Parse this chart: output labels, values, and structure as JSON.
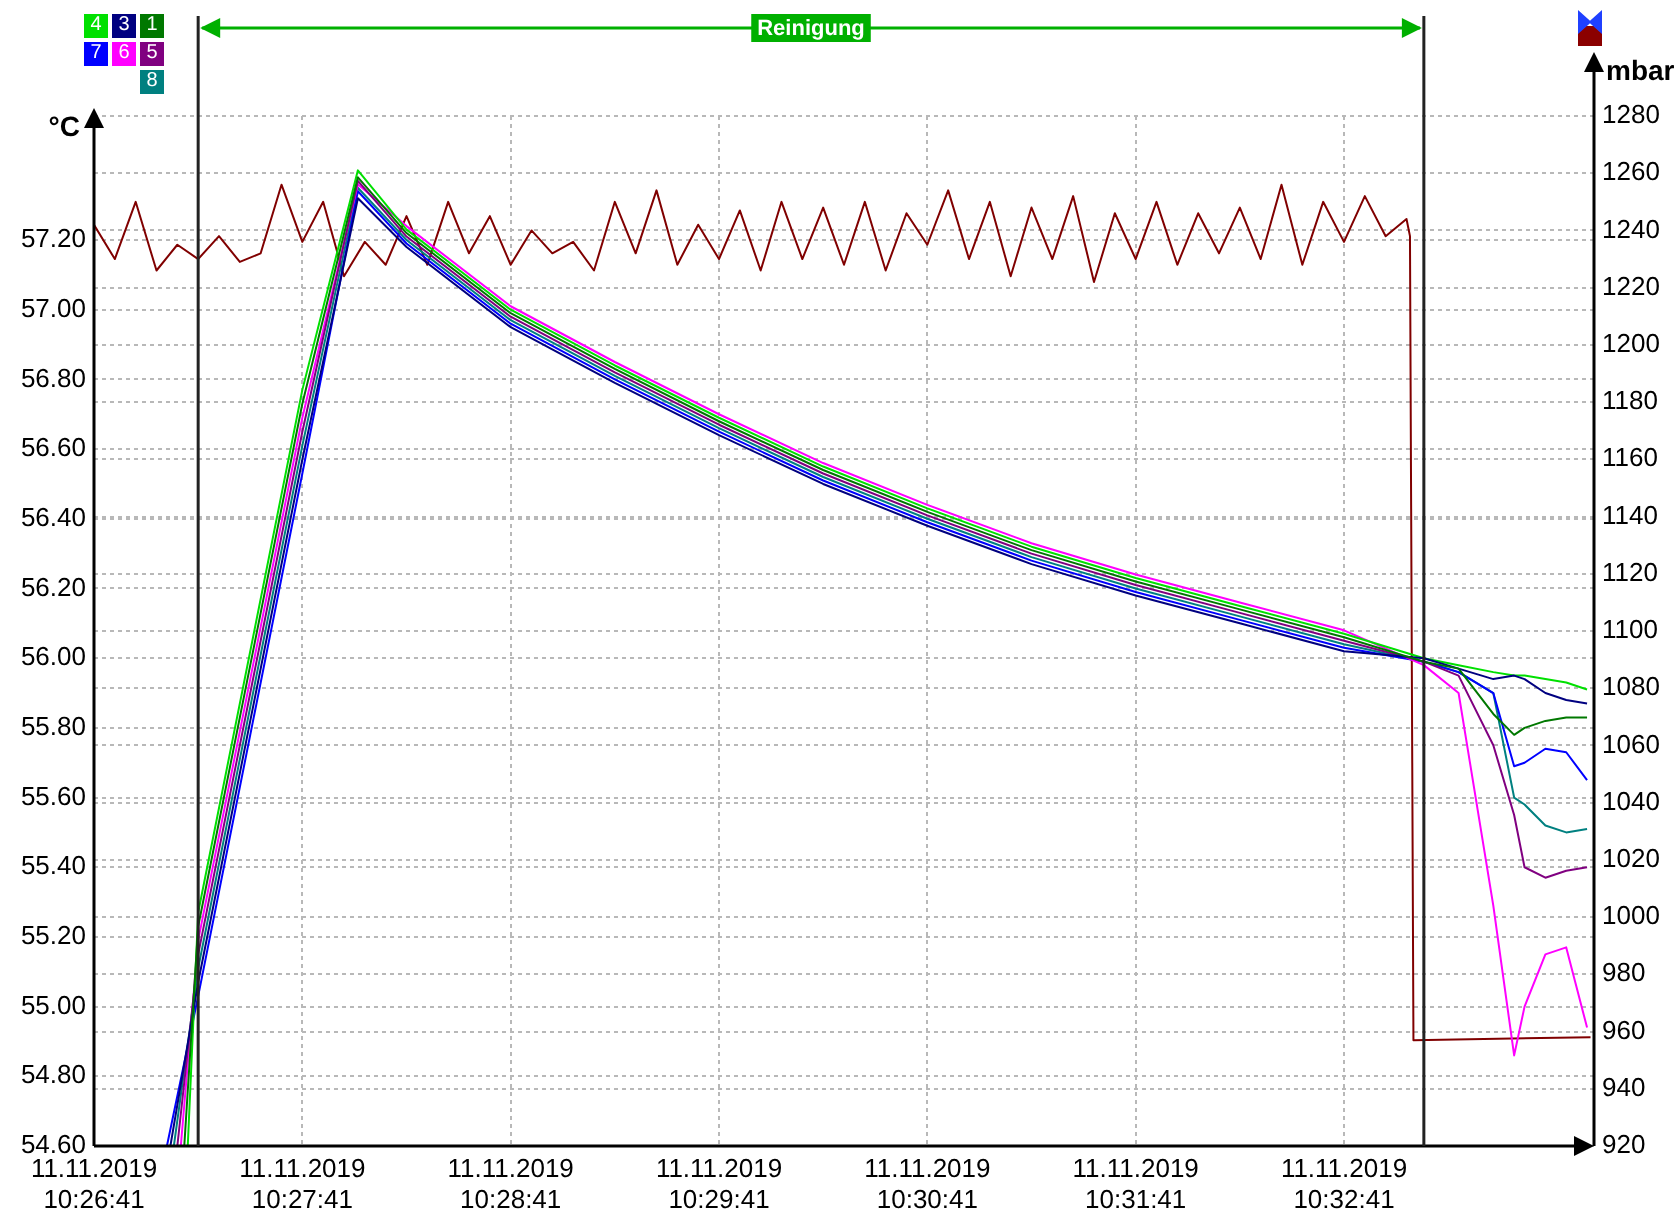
{
  "chart_data": {
    "type": "line",
    "ylabel": "°C",
    "y2label": "mbar",
    "series": [
      {
        "name": "1",
        "color": "#007800",
        "x": [
          "2019-11-11T10:27:07",
          "2019-11-11T10:27:11",
          "2019-11-11T10:27:26",
          "2019-11-11T10:27:41",
          "2019-11-11T10:27:57",
          "2019-11-11T10:28:11",
          "2019-11-11T10:28:41",
          "2019-11-11T10:29:11",
          "2019-11-11T10:29:41",
          "2019-11-11T10:30:11",
          "2019-11-11T10:30:41",
          "2019-11-11T10:31:11",
          "2019-11-11T10:31:41",
          "2019-11-11T10:32:11",
          "2019-11-11T10:32:41",
          "2019-11-11T10:33:04",
          "2019-11-11T10:33:14",
          "2019-11-11T10:33:24",
          "2019-11-11T10:33:30",
          "2019-11-11T10:33:33",
          "2019-11-11T10:33:39",
          "2019-11-11T10:33:45",
          "2019-11-11T10:33:51"
        ],
        "values": [
          54.6,
          55.23,
          55.98,
          56.73,
          57.38,
          57.22,
          56.99,
          56.83,
          56.68,
          56.54,
          56.42,
          56.31,
          56.22,
          56.14,
          56.06,
          55.99,
          55.97,
          55.84,
          55.78,
          55.8,
          55.82,
          55.83,
          55.83
        ]
      },
      {
        "name": "3",
        "color": "#000080",
        "x": [
          "2019-11-11T10:27:03",
          "2019-11-11T10:27:11",
          "2019-11-11T10:27:26",
          "2019-11-11T10:27:41",
          "2019-11-11T10:27:57",
          "2019-11-11T10:28:11",
          "2019-11-11T10:28:41",
          "2019-11-11T10:29:11",
          "2019-11-11T10:29:41",
          "2019-11-11T10:30:11",
          "2019-11-11T10:30:41",
          "2019-11-11T10:31:11",
          "2019-11-11T10:31:41",
          "2019-11-11T10:32:11",
          "2019-11-11T10:32:41",
          "2019-11-11T10:33:04",
          "2019-11-11T10:33:14",
          "2019-11-11T10:33:24",
          "2019-11-11T10:33:30",
          "2019-11-11T10:33:33",
          "2019-11-11T10:33:39",
          "2019-11-11T10:33:45",
          "2019-11-11T10:33:51"
        ],
        "values": [
          54.6,
          55.07,
          55.82,
          56.57,
          57.32,
          57.18,
          56.95,
          56.79,
          56.64,
          56.5,
          56.38,
          56.27,
          56.18,
          56.1,
          56.02,
          56.0,
          55.97,
          55.94,
          55.95,
          55.94,
          55.9,
          55.88,
          55.87
        ]
      },
      {
        "name": "4",
        "color": "#00e000",
        "x": [
          "2019-11-11T10:27:08",
          "2019-11-11T10:27:11",
          "2019-11-11T10:27:26",
          "2019-11-11T10:27:41",
          "2019-11-11T10:27:57",
          "2019-11-11T10:28:11",
          "2019-11-11T10:28:41",
          "2019-11-11T10:29:11",
          "2019-11-11T10:29:41",
          "2019-11-11T10:30:11",
          "2019-11-11T10:30:41",
          "2019-11-11T10:31:11",
          "2019-11-11T10:31:41",
          "2019-11-11T10:32:11",
          "2019-11-11T10:32:41",
          "2019-11-11T10:33:04",
          "2019-11-11T10:33:14",
          "2019-11-11T10:33:24",
          "2019-11-11T10:33:30",
          "2019-11-11T10:33:33",
          "2019-11-11T10:33:39",
          "2019-11-11T10:33:45",
          "2019-11-11T10:33:51"
        ],
        "values": [
          54.6,
          55.27,
          56.02,
          56.77,
          57.4,
          57.23,
          57.0,
          56.84,
          56.69,
          56.55,
          56.43,
          56.32,
          56.23,
          56.15,
          56.07,
          56.0,
          55.98,
          55.96,
          55.95,
          55.95,
          55.94,
          55.93,
          55.91
        ]
      },
      {
        "name": "5",
        "color": "#800080",
        "x": [
          "2019-11-11T10:27:05",
          "2019-11-11T10:27:11",
          "2019-11-11T10:27:26",
          "2019-11-11T10:27:41",
          "2019-11-11T10:27:57",
          "2019-11-11T10:28:11",
          "2019-11-11T10:28:41",
          "2019-11-11T10:29:11",
          "2019-11-11T10:29:41",
          "2019-11-11T10:30:11",
          "2019-11-11T10:30:41",
          "2019-11-11T10:31:11",
          "2019-11-11T10:31:41",
          "2019-11-11T10:32:11",
          "2019-11-11T10:32:41",
          "2019-11-11T10:33:04",
          "2019-11-11T10:33:14",
          "2019-11-11T10:33:24",
          "2019-11-11T10:33:30",
          "2019-11-11T10:33:33",
          "2019-11-11T10:33:39",
          "2019-11-11T10:33:45",
          "2019-11-11T10:33:51"
        ],
        "values": [
          54.6,
          55.15,
          55.9,
          56.65,
          57.37,
          57.21,
          56.98,
          56.82,
          56.67,
          56.53,
          56.41,
          56.3,
          56.21,
          56.13,
          56.05,
          55.99,
          55.95,
          55.75,
          55.55,
          55.4,
          55.37,
          55.39,
          55.4
        ]
      },
      {
        "name": "6",
        "color": "#ff00ff",
        "x": [
          "2019-11-11T10:27:06",
          "2019-11-11T10:27:11",
          "2019-11-11T10:27:26",
          "2019-11-11T10:27:41",
          "2019-11-11T10:27:57",
          "2019-11-11T10:28:11",
          "2019-11-11T10:28:41",
          "2019-11-11T10:29:11",
          "2019-11-11T10:29:41",
          "2019-11-11T10:30:11",
          "2019-11-11T10:30:41",
          "2019-11-11T10:31:11",
          "2019-11-11T10:31:41",
          "2019-11-11T10:32:11",
          "2019-11-11T10:32:41",
          "2019-11-11T10:33:04",
          "2019-11-11T10:33:14",
          "2019-11-11T10:33:24",
          "2019-11-11T10:33:30",
          "2019-11-11T10:33:33",
          "2019-11-11T10:33:39",
          "2019-11-11T10:33:45",
          "2019-11-11T10:33:51"
        ],
        "values": [
          54.6,
          55.19,
          55.94,
          56.69,
          57.36,
          57.24,
          57.01,
          56.85,
          56.7,
          56.56,
          56.44,
          56.33,
          56.24,
          56.16,
          56.08,
          55.98,
          55.9,
          55.29,
          54.86,
          55.0,
          55.15,
          55.17,
          54.94
        ]
      },
      {
        "name": "7",
        "color": "#0000ff",
        "x": [
          "2019-11-11T10:27:02",
          "2019-11-11T10:27:11",
          "2019-11-11T10:27:26",
          "2019-11-11T10:27:41",
          "2019-11-11T10:27:57",
          "2019-11-11T10:28:11",
          "2019-11-11T10:28:41",
          "2019-11-11T10:29:11",
          "2019-11-11T10:29:41",
          "2019-11-11T10:30:11",
          "2019-11-11T10:30:41",
          "2019-11-11T10:31:11",
          "2019-11-11T10:31:41",
          "2019-11-11T10:32:11",
          "2019-11-11T10:32:41",
          "2019-11-11T10:33:04",
          "2019-11-11T10:33:14",
          "2019-11-11T10:33:24",
          "2019-11-11T10:33:30",
          "2019-11-11T10:33:33",
          "2019-11-11T10:33:39",
          "2019-11-11T10:33:45",
          "2019-11-11T10:33:51"
        ],
        "values": [
          54.6,
          55.03,
          55.78,
          56.53,
          57.34,
          57.19,
          56.96,
          56.8,
          56.65,
          56.51,
          56.39,
          56.28,
          56.19,
          56.11,
          56.03,
          55.99,
          55.96,
          55.9,
          55.69,
          55.7,
          55.74,
          55.73,
          55.65
        ]
      },
      {
        "name": "8",
        "color": "#008080",
        "x": [
          "2019-11-11T10:27:04",
          "2019-11-11T10:27:11",
          "2019-11-11T10:27:26",
          "2019-11-11T10:27:41",
          "2019-11-11T10:27:57",
          "2019-11-11T10:28:11",
          "2019-11-11T10:28:41",
          "2019-11-11T10:29:11",
          "2019-11-11T10:29:41",
          "2019-11-11T10:30:11",
          "2019-11-11T10:30:41",
          "2019-11-11T10:31:11",
          "2019-11-11T10:31:41",
          "2019-11-11T10:32:11",
          "2019-11-11T10:32:41",
          "2019-11-11T10:33:04",
          "2019-11-11T10:33:14",
          "2019-11-11T10:33:24",
          "2019-11-11T10:33:30",
          "2019-11-11T10:33:33",
          "2019-11-11T10:33:39",
          "2019-11-11T10:33:45",
          "2019-11-11T10:33:51"
        ],
        "values": [
          54.6,
          55.11,
          55.86,
          56.61,
          57.35,
          57.2,
          56.97,
          56.81,
          56.66,
          56.52,
          56.4,
          56.29,
          56.2,
          56.12,
          56.04,
          55.99,
          55.96,
          55.9,
          55.6,
          55.58,
          55.52,
          55.5,
          55.51
        ]
      },
      {
        "color": "#800000",
        "axis": "y2",
        "x": [
          "2019-11-11T10:26:41",
          "2019-11-11T10:26:47",
          "2019-11-11T10:26:53",
          "2019-11-11T10:26:59",
          "2019-11-11T10:27:05",
          "2019-11-11T10:27:11",
          "2019-11-11T10:27:17",
          "2019-11-11T10:27:23",
          "2019-11-11T10:27:29",
          "2019-11-11T10:27:35",
          "2019-11-11T10:27:41",
          "2019-11-11T10:27:47",
          "2019-11-11T10:27:53",
          "2019-11-11T10:27:59",
          "2019-11-11T10:28:05",
          "2019-11-11T10:28:11",
          "2019-11-11T10:28:17",
          "2019-11-11T10:28:23",
          "2019-11-11T10:28:29",
          "2019-11-11T10:28:35",
          "2019-11-11T10:28:41",
          "2019-11-11T10:28:47",
          "2019-11-11T10:28:53",
          "2019-11-11T10:28:59",
          "2019-11-11T10:29:05",
          "2019-11-11T10:29:11",
          "2019-11-11T10:29:17",
          "2019-11-11T10:29:23",
          "2019-11-11T10:29:29",
          "2019-11-11T10:29:35",
          "2019-11-11T10:29:41",
          "2019-11-11T10:29:47",
          "2019-11-11T10:29:53",
          "2019-11-11T10:29:59",
          "2019-11-11T10:30:05",
          "2019-11-11T10:30:11",
          "2019-11-11T10:30:17",
          "2019-11-11T10:30:23",
          "2019-11-11T10:30:29",
          "2019-11-11T10:30:35",
          "2019-11-11T10:30:41",
          "2019-11-11T10:30:47",
          "2019-11-11T10:30:53",
          "2019-11-11T10:30:59",
          "2019-11-11T10:31:05",
          "2019-11-11T10:31:11",
          "2019-11-11T10:31:17",
          "2019-11-11T10:31:23",
          "2019-11-11T10:31:29",
          "2019-11-11T10:31:35",
          "2019-11-11T10:31:41",
          "2019-11-11T10:31:47",
          "2019-11-11T10:31:53",
          "2019-11-11T10:31:59",
          "2019-11-11T10:32:05",
          "2019-11-11T10:32:11",
          "2019-11-11T10:32:17",
          "2019-11-11T10:32:23",
          "2019-11-11T10:32:29",
          "2019-11-11T10:32:35",
          "2019-11-11T10:32:41",
          "2019-11-11T10:32:47",
          "2019-11-11T10:32:53",
          "2019-11-11T10:32:59",
          "2019-11-11T10:33:00",
          "2019-11-11T10:33:01",
          "2019-11-11T10:33:52"
        ],
        "values": [
          1242,
          1230,
          1250,
          1226,
          1235,
          1230,
          1238,
          1229,
          1232,
          1256,
          1236,
          1250,
          1224,
          1236,
          1228,
          1245,
          1228,
          1250,
          1232,
          1245,
          1228,
          1240,
          1232,
          1236,
          1226,
          1250,
          1232,
          1254,
          1228,
          1242,
          1230,
          1247,
          1226,
          1250,
          1230,
          1248,
          1228,
          1250,
          1226,
          1246,
          1235,
          1254,
          1230,
          1250,
          1224,
          1248,
          1230,
          1252,
          1222,
          1246,
          1230,
          1250,
          1228,
          1246,
          1232,
          1248,
          1230,
          1256,
          1228,
          1250,
          1236,
          1252,
          1238,
          1244,
          1238,
          957,
          958
        ]
      }
    ],
    "xlim": [
      "2019-11-11T10:26:41",
      "2019-11-11T10:33:53"
    ],
    "xticks": [
      {
        "value": "2019-11-11T10:26:41",
        "label": "11.11.2019\n10:26:41"
      },
      {
        "value": "2019-11-11T10:27:41",
        "label": "11.11.2019\n10:27:41"
      },
      {
        "value": "2019-11-11T10:28:41",
        "label": "11.11.2019\n10:28:41"
      },
      {
        "value": "2019-11-11T10:29:41",
        "label": "11.11.2019\n10:29:41"
      },
      {
        "value": "2019-11-11T10:30:41",
        "label": "11.11.2019\n10:30:41"
      },
      {
        "value": "2019-11-11T10:31:41",
        "label": "11.11.2019\n10:31:41"
      },
      {
        "value": "2019-11-11T10:32:41",
        "label": "11.11.2019\n10:32:41"
      }
    ],
    "ylim": [
      54.6,
      57.556
    ],
    "yticks": [
      {
        "value": 54.6,
        "label": "54.60"
      },
      {
        "value": 54.8,
        "label": "54.80"
      },
      {
        "value": 55.0,
        "label": "55.00"
      },
      {
        "value": 55.2,
        "label": "55.20"
      },
      {
        "value": 55.4,
        "label": "55.40"
      },
      {
        "value": 55.6,
        "label": "55.60"
      },
      {
        "value": 55.8,
        "label": "55.80"
      },
      {
        "value": 56.0,
        "label": "56.00"
      },
      {
        "value": 56.2,
        "label": "56.20"
      },
      {
        "value": 56.4,
        "label": "56.40"
      },
      {
        "value": 56.6,
        "label": "56.60"
      },
      {
        "value": 56.8,
        "label": "56.80"
      },
      {
        "value": 57.0,
        "label": "57.00"
      },
      {
        "value": 57.2,
        "label": "57.20"
      }
    ],
    "y2lim": [
      920,
      1280
    ],
    "y2ticks": [
      920,
      940,
      960,
      980,
      1000,
      1020,
      1040,
      1060,
      1080,
      1100,
      1120,
      1140,
      1160,
      1180,
      1200,
      1220,
      1240,
      1260,
      1280
    ],
    "ref_lines": [
      {
        "axis": "x",
        "value": "2019-11-11T10:27:11",
        "color": "#222222"
      },
      {
        "axis": "x",
        "value": "2019-11-11T10:33:04",
        "color": "#222222"
      }
    ],
    "annotations": [
      "Reinigung"
    ],
    "grid": true,
    "legend": "top left",
    "marker": "none",
    "line_style": "solid"
  }
}
